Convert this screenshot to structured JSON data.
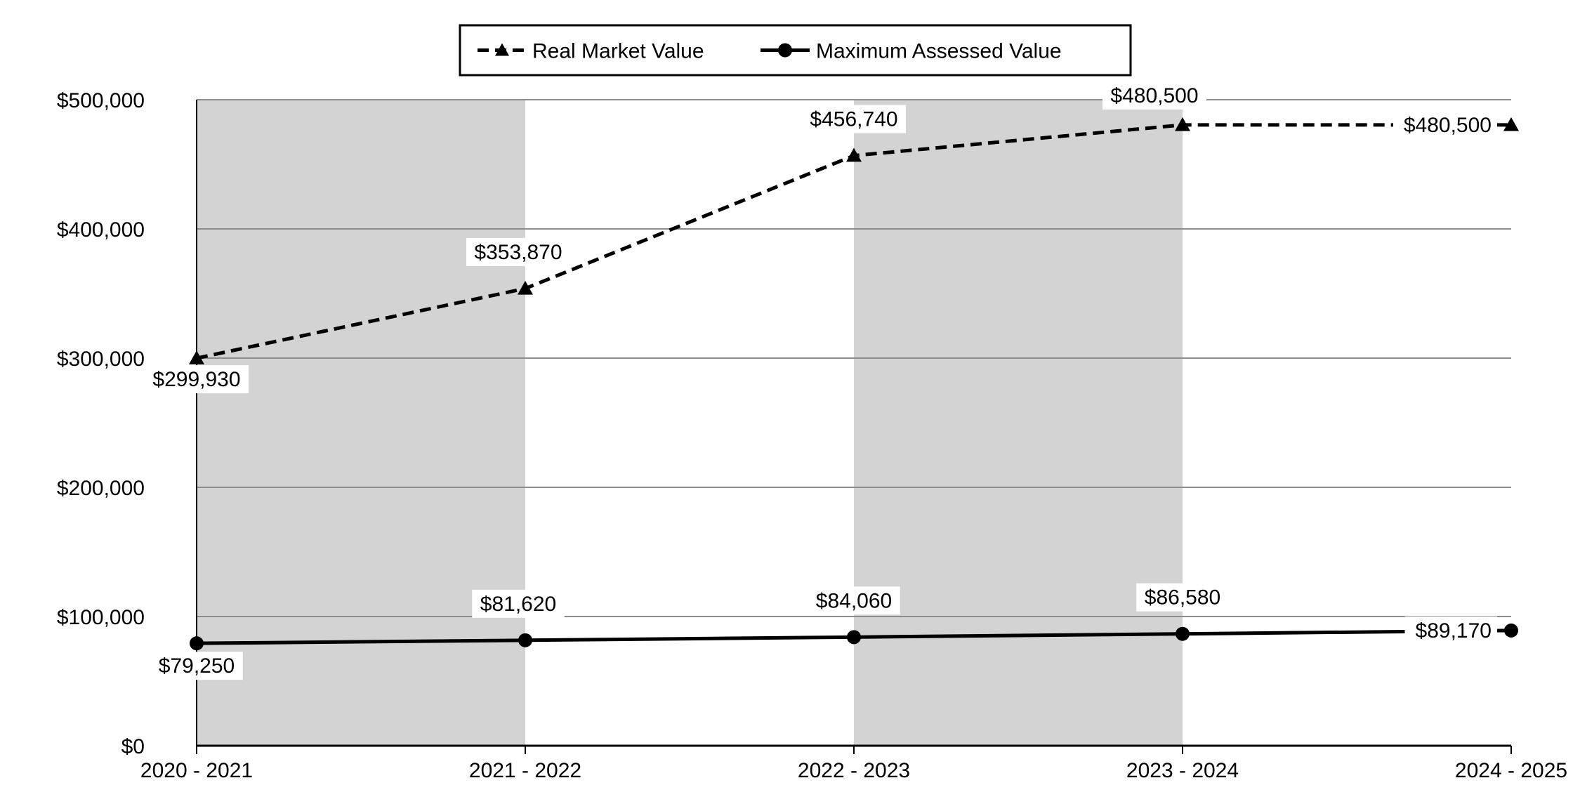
{
  "chart_data": {
    "type": "line",
    "title": "",
    "xlabel": "",
    "ylabel": "",
    "categories": [
      "2020 - 2021",
      "2021 - 2022",
      "2022 - 2023",
      "2023 - 2024",
      "2024 - 2025"
    ],
    "ylim": [
      0,
      500000
    ],
    "y_ticks": [
      0,
      100000,
      200000,
      300000,
      400000,
      500000
    ],
    "y_tick_labels": [
      "$0",
      "$100,000",
      "$200,000",
      "$300,000",
      "$400,000",
      "$500,000"
    ],
    "grid": true,
    "shaded_columns": [
      0,
      2
    ],
    "shade_color": "#d3d3d3",
    "legend_position": "top-center",
    "series": [
      {
        "name": "Real Market Value",
        "line_style": "dashed",
        "marker": "triangle",
        "color": "#000000",
        "values": [
          299930,
          353870,
          456740,
          480500,
          480500
        ],
        "labels": [
          "$299,930",
          "$353,870",
          "$456,740",
          "$480,500",
          "$480,500"
        ]
      },
      {
        "name": "Maximum Assessed Value",
        "line_style": "solid",
        "marker": "circle",
        "color": "#000000",
        "values": [
          79250,
          81620,
          84060,
          86580,
          89170
        ],
        "labels": [
          "$79,250",
          "$81,620",
          "$84,060",
          "$86,580",
          "$89,170"
        ]
      }
    ]
  }
}
